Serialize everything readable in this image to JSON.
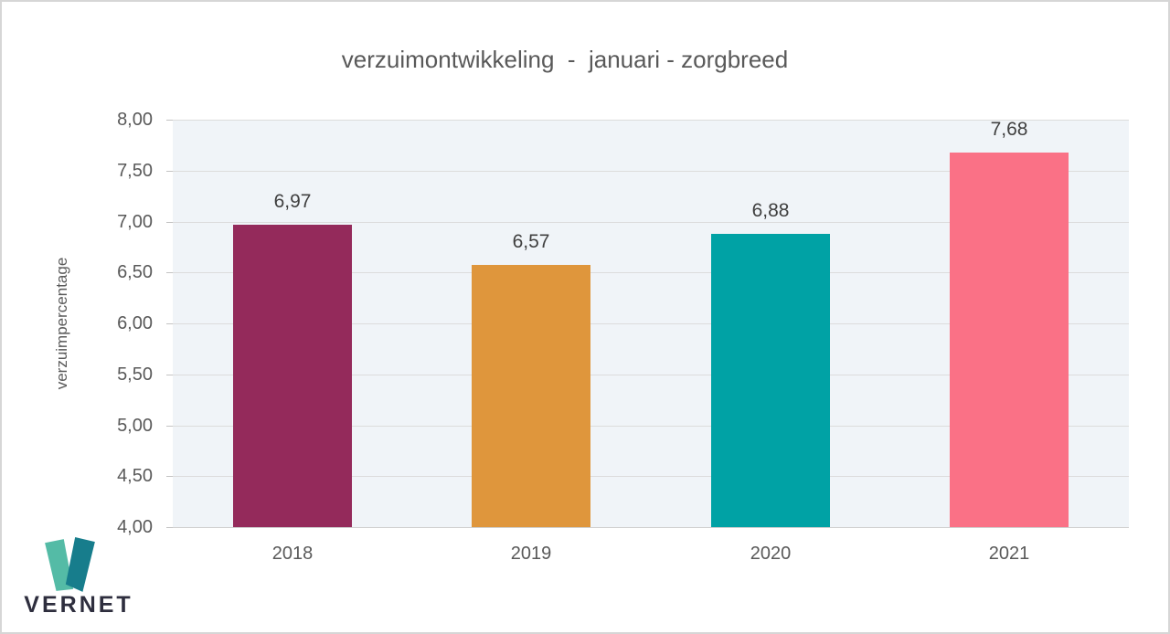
{
  "chart_data": {
    "type": "bar",
    "title": "verzuimontwikkeling  -  januari - zorgbreed",
    "categories": [
      "2018",
      "2019",
      "2020",
      "2021"
    ],
    "values": [
      6.97,
      6.57,
      6.88,
      7.68
    ],
    "value_labels": [
      "6,97",
      "6,57",
      "6,88",
      "7,68"
    ],
    "bar_colors": [
      "#942a5b",
      "#df963c",
      "#00a2a5",
      "#fa7186"
    ],
    "xlabel": "",
    "ylabel": "verzuimpercentage",
    "ylim": [
      4.0,
      8.0
    ],
    "ytick_step": 0.5,
    "ytick_labels": [
      "4,00",
      "4,50",
      "5,00",
      "5,50",
      "6,00",
      "6,50",
      "7,00",
      "7,50",
      "8,00"
    ],
    "grid": true,
    "legend": "none",
    "plot_background": "#f0f4f8",
    "grid_color": "#dcdcdc",
    "axis_text_color": "#595959",
    "data_label_color": "#3f3f3f"
  },
  "logo": {
    "text": "VERNET",
    "mark_left_color": "#54bba6",
    "mark_right_color": "#177d8c",
    "text_color": "#2e2e3e"
  }
}
